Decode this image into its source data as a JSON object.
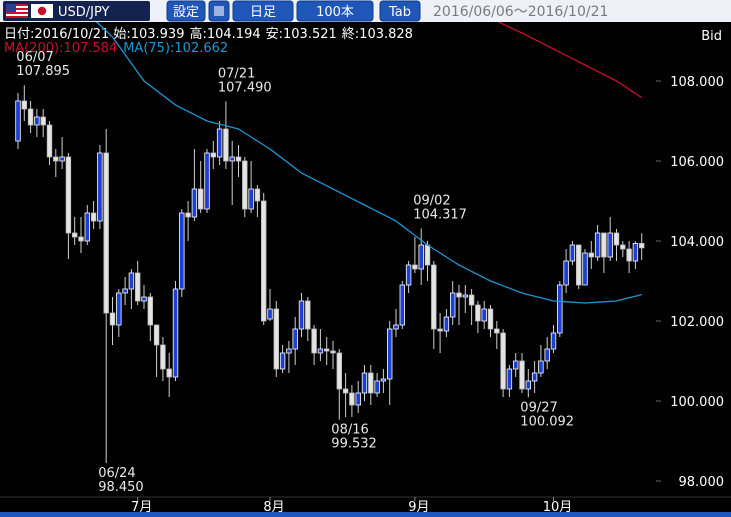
{
  "toolbar": {
    "pair": "USD/JPY",
    "buttons": [
      "設定",
      "日足",
      "100本",
      "Tab"
    ],
    "range": "2016/06/06～2016/10/21"
  },
  "header": {
    "date": "日付:2016/10/21",
    "price_type": "Bid"
  },
  "chart_data": {
    "type": "candlestick",
    "ohlc_labels": [
      "始:",
      "高:",
      "安:",
      "終:"
    ],
    "categories": [
      null,
      null,
      null,
      null,
      null,
      null,
      null,
      null,
      null,
      null,
      null,
      null,
      null,
      null,
      null,
      null,
      null,
      null,
      null,
      "7月",
      null,
      null,
      null,
      null,
      null,
      null,
      null,
      null,
      null,
      null,
      null,
      null,
      null,
      null,
      null,
      null,
      null,
      null,
      null,
      null,
      "8月",
      null,
      null,
      null,
      null,
      null,
      null,
      null,
      null,
      null,
      null,
      null,
      null,
      null,
      null,
      null,
      null,
      null,
      null,
      null,
      null,
      null,
      null,
      "9月",
      null,
      null,
      null,
      null,
      null,
      null,
      null,
      null,
      null,
      null,
      null,
      null,
      null,
      null,
      null,
      null,
      null,
      null,
      null,
      null,
      null,
      "10月",
      null,
      null,
      null,
      null,
      null,
      null,
      null,
      null,
      null,
      null,
      null,
      null,
      null,
      null
    ],
    "open": [
      106.5,
      107.5,
      107.3,
      106.9,
      107.1,
      106.9,
      106.1,
      106.0,
      106.1,
      104.2,
      104.1,
      104.0,
      104.7,
      104.5,
      106.2,
      102.2,
      101.9,
      102.7,
      102.8,
      103.2,
      102.5,
      102.6,
      101.9,
      101.4,
      100.8,
      100.6,
      102.8,
      104.7,
      104.6,
      105.3,
      104.8,
      106.2,
      106.1,
      106.8,
      106.0,
      106.1,
      106.0,
      104.8,
      105.3,
      105.0,
      102.05,
      102.3,
      100.8,
      101.2,
      101.3,
      101.8,
      102.5,
      101.8,
      101.2,
      101.3,
      101.25,
      101.2,
      100.3,
      100.2,
      99.9,
      100.2,
      100.7,
      100.2,
      100.5,
      100.55,
      101.8,
      101.9,
      102.9,
      103.4,
      103.3,
      103.9,
      103.4,
      101.8,
      101.75,
      102.1,
      102.7,
      102.6,
      102.65,
      102.4,
      102.0,
      102.3,
      101.8,
      101.7,
      100.3,
      100.8,
      101.0,
      100.3,
      100.5,
      100.7,
      101.0,
      101.3,
      101.7,
      102.9,
      103.5,
      103.9,
      102.9,
      103.7,
      103.6,
      104.2,
      103.6,
      104.2,
      103.9,
      103.8,
      103.5,
      103.939
    ],
    "high": [
      107.7,
      107.895,
      107.5,
      107.3,
      107.3,
      107.0,
      106.3,
      106.6,
      106.2,
      104.6,
      104.6,
      104.9,
      105.0,
      106.4,
      106.8,
      102.6,
      102.8,
      103.1,
      103.3,
      103.5,
      102.9,
      102.7,
      101.9,
      101.6,
      101.2,
      103.0,
      104.8,
      105.0,
      106.3,
      106.0,
      106.3,
      106.5,
      107.0,
      107.49,
      106.5,
      106.4,
      106.1,
      106.0,
      105.4,
      105.2,
      102.8,
      102.5,
      101.4,
      101.5,
      102.1,
      102.7,
      102.6,
      101.9,
      101.8,
      101.6,
      101.5,
      101.3,
      100.7,
      100.4,
      100.5,
      100.9,
      100.9,
      100.7,
      100.8,
      102.0,
      102.3,
      103.0,
      103.5,
      104.1,
      104.317,
      104.0,
      103.5,
      102.2,
      102.3,
      103.0,
      102.9,
      102.9,
      102.8,
      102.5,
      102.5,
      102.4,
      102.0,
      101.8,
      100.9,
      101.2,
      101.2,
      100.8,
      101.0,
      101.4,
      101.6,
      101.9,
      103.0,
      103.8,
      104.0,
      103.9,
      103.8,
      104.0,
      104.4,
      104.2,
      104.6,
      104.3,
      104.0,
      104.0,
      104.0,
      104.194
    ],
    "low": [
      106.3,
      107.0,
      106.7,
      106.6,
      106.6,
      105.9,
      105.6,
      105.8,
      103.55,
      103.9,
      103.7,
      103.9,
      104.3,
      104.3,
      98.45,
      101.4,
      101.6,
      102.4,
      102.3,
      102.4,
      102.3,
      101.5,
      100.6,
      100.5,
      100.1,
      100.5,
      102.6,
      104.0,
      104.5,
      104.7,
      104.7,
      105.8,
      105.9,
      105.8,
      104.9,
      105.6,
      104.6,
      104.7,
      104.6,
      101.9,
      102.0,
      100.6,
      100.7,
      100.7,
      100.9,
      101.6,
      101.5,
      100.9,
      101.0,
      100.9,
      100.8,
      99.532,
      99.6,
      99.6,
      99.7,
      100.0,
      99.9,
      100.1,
      100.2,
      99.9,
      101.6,
      101.8,
      102.7,
      103.2,
      102.9,
      103.0,
      101.3,
      101.2,
      101.6,
      101.9,
      101.9,
      102.2,
      101.9,
      101.7,
      101.8,
      101.6,
      101.3,
      100.1,
      100.1,
      100.6,
      100.2,
      100.092,
      100.2,
      100.6,
      100.8,
      101.2,
      101.6,
      102.7,
      103.4,
      102.8,
      102.9,
      103.3,
      103.5,
      103.2,
      103.5,
      103.5,
      103.6,
      103.2,
      103.3,
      103.521
    ],
    "close": [
      107.5,
      107.3,
      106.9,
      107.1,
      106.9,
      106.1,
      106.0,
      106.1,
      104.2,
      104.1,
      104.0,
      104.7,
      104.5,
      106.2,
      102.2,
      101.9,
      102.7,
      102.8,
      103.2,
      102.5,
      102.6,
      101.9,
      101.4,
      100.8,
      100.6,
      102.8,
      104.7,
      104.6,
      105.3,
      104.8,
      106.2,
      106.1,
      106.8,
      106.0,
      106.1,
      106.0,
      104.8,
      105.3,
      105.0,
      102.0,
      102.3,
      100.8,
      101.2,
      101.3,
      101.8,
      102.5,
      101.8,
      101.2,
      101.3,
      101.25,
      101.2,
      100.3,
      100.2,
      99.9,
      100.2,
      100.7,
      100.2,
      100.5,
      100.55,
      101.8,
      101.9,
      102.9,
      103.4,
      103.3,
      103.9,
      103.4,
      101.8,
      101.75,
      102.1,
      102.7,
      102.6,
      102.65,
      102.4,
      102.0,
      102.3,
      101.8,
      101.7,
      100.3,
      100.8,
      101.0,
      100.3,
      100.5,
      100.7,
      101.0,
      101.3,
      101.7,
      102.9,
      103.5,
      103.9,
      102.9,
      103.7,
      103.6,
      104.2,
      103.6,
      104.2,
      103.9,
      103.8,
      103.5,
      103.939,
      103.828
    ],
    "up_color": "#1c3fd4",
    "down_color": "#e4e4e4",
    "series": [
      {
        "name": "MA(200):",
        "color": "#c8102e",
        "values": [
          null,
          null,
          null,
          null,
          null,
          null,
          null,
          null,
          null,
          null,
          null,
          null,
          null,
          null,
          null,
          null,
          null,
          null,
          null,
          null,
          null,
          null,
          null,
          null,
          null,
          null,
          null,
          null,
          null,
          null,
          null,
          null,
          null,
          null,
          null,
          null,
          null,
          null,
          null,
          null,
          null,
          null,
          null,
          null,
          null,
          null,
          null,
          null,
          null,
          null,
          null,
          null,
          null,
          null,
          null,
          null,
          null,
          null,
          null,
          null,
          null,
          null,
          null,
          null,
          null,
          null,
          null,
          null,
          null,
          null,
          null,
          null,
          null,
          null,
          null,
          null,
          109.5,
          109.42,
          109.35,
          109.27,
          109.2,
          109.12,
          109.04,
          108.96,
          108.88,
          108.8,
          108.72,
          108.64,
          108.56,
          108.48,
          108.4,
          108.32,
          108.24,
          108.16,
          108.08,
          108.0,
          107.9,
          107.79,
          107.69,
          107.584
        ]
      },
      {
        "name": "MA(75):",
        "color": "#1e96d2",
        "values": [
          null,
          null,
          null,
          null,
          null,
          null,
          null,
          null,
          null,
          null,
          null,
          109.7,
          109.55,
          109.4,
          109.25,
          109.1,
          108.88,
          108.66,
          108.44,
          108.22,
          108.0,
          107.88,
          107.76,
          107.64,
          107.52,
          107.4,
          107.32,
          107.24,
          107.16,
          107.08,
          107.0,
          106.96,
          106.92,
          106.88,
          106.84,
          106.8,
          106.7,
          106.6,
          106.5,
          106.4,
          106.3,
          106.18,
          106.06,
          105.94,
          105.82,
          105.7,
          105.62,
          105.54,
          105.46,
          105.38,
          105.3,
          105.22,
          105.14,
          105.06,
          104.98,
          104.9,
          104.82,
          104.74,
          104.66,
          104.58,
          104.5,
          104.38,
          104.26,
          104.14,
          104.02,
          103.9,
          103.8,
          103.7,
          103.6,
          103.5,
          103.4,
          103.32,
          103.24,
          103.16,
          103.08,
          103.0,
          102.94,
          102.88,
          102.82,
          102.76,
          102.7,
          102.66,
          102.62,
          102.58,
          102.54,
          102.5,
          102.49,
          102.48,
          102.47,
          102.46,
          102.45,
          102.46,
          102.47,
          102.48,
          102.49,
          102.5,
          102.54,
          102.58,
          102.62,
          102.662
        ]
      }
    ],
    "ylim": [
      97.6,
      109.475
    ],
    "yticks": [
      {
        "value": 98,
        "label": "98.000"
      },
      {
        "value": 100,
        "label": "100.000"
      },
      {
        "value": 102,
        "label": "102.000"
      },
      {
        "value": 104,
        "label": "104.000"
      },
      {
        "value": 106,
        "label": "106.000"
      },
      {
        "value": 108,
        "label": "108.000"
      }
    ],
    "grid": false,
    "annotations": [
      {
        "date": "06/07",
        "value": 107.895
      },
      {
        "date": "06/24",
        "value": {
          "value": 98.45,
          "label": "98.450"
        }
      },
      {
        "date": "07/21",
        "value": {
          "value": 107.49,
          "label": "107.490"
        }
      },
      {
        "date": "08/16",
        "value": 99.532
      },
      {
        "date": "09/02",
        "value": 104.317
      },
      {
        "date": "09/27",
        "value": 100.092
      }
    ]
  }
}
